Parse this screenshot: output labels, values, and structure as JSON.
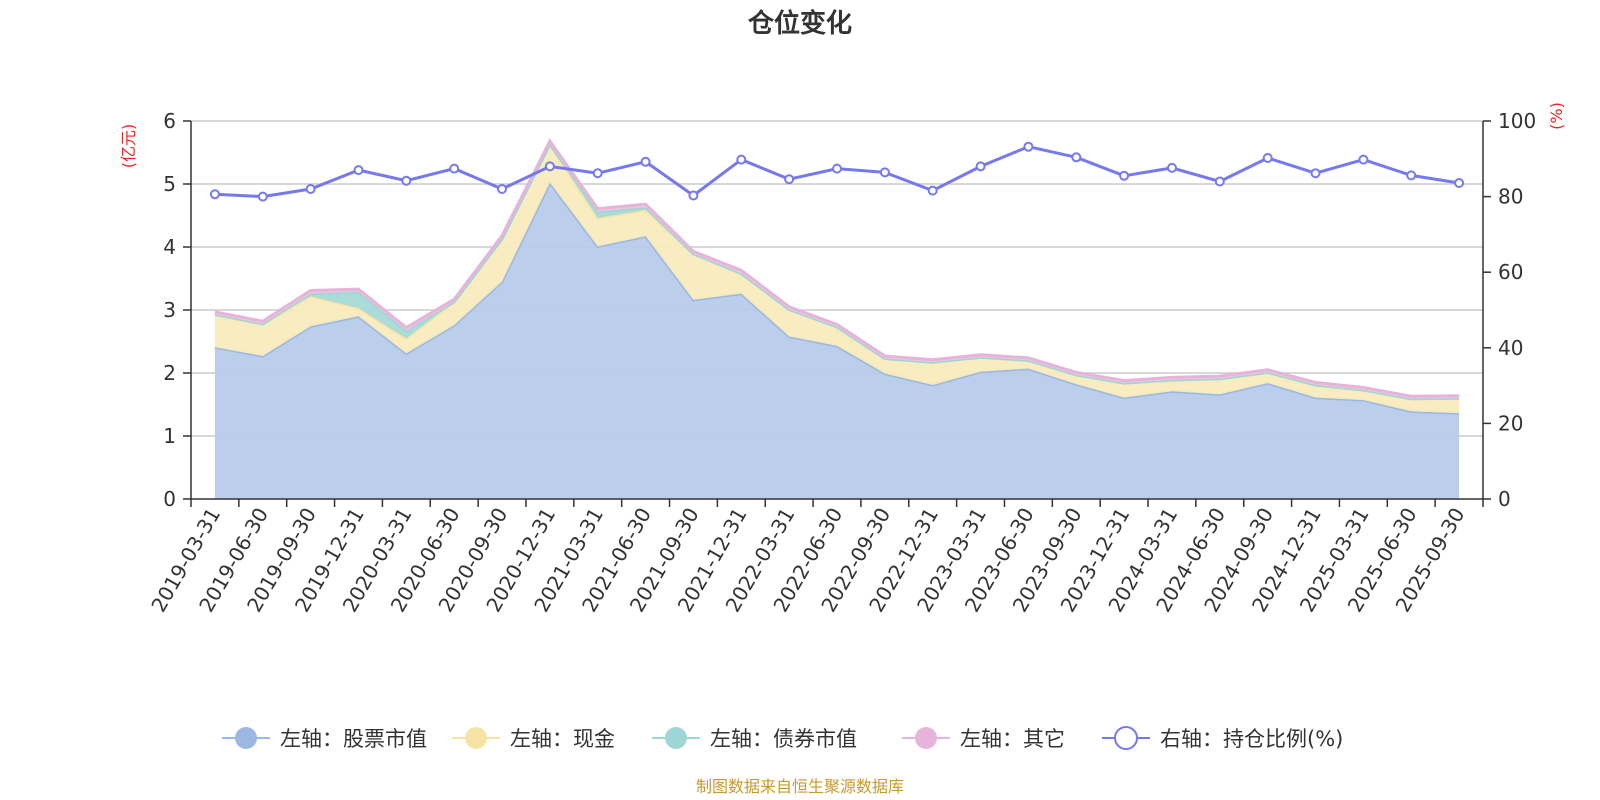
{
  "chart_data": {
    "type": "area",
    "title": "仓位变化",
    "left_axis_label": "(亿元)",
    "right_axis_label": "(%)",
    "categories": [
      "2019-03-31",
      "2019-06-30",
      "2019-09-30",
      "2019-12-31",
      "2020-03-31",
      "2020-06-30",
      "2020-09-30",
      "2020-12-31",
      "2021-03-31",
      "2021-06-30",
      "2021-09-30",
      "2021-12-31",
      "2022-03-31",
      "2022-06-30",
      "2022-09-30",
      "2022-12-31",
      "2023-03-31",
      "2023-06-30",
      "2023-09-30",
      "2023-12-31",
      "2024-03-31",
      "2024-06-30",
      "2024-09-30",
      "2024-12-31",
      "2025-03-31",
      "2025-06-30",
      "2025-09-30"
    ],
    "left_ylim": [
      0,
      6
    ],
    "left_ticks": [
      "0",
      "1",
      "2",
      "3",
      "4",
      "5",
      "6"
    ],
    "right_ylim": [
      0,
      100
    ],
    "right_ticks": [
      "0",
      "20",
      "40",
      "60",
      "80",
      "100"
    ],
    "stack_series": [
      {
        "name": "左轴：股票市值",
        "color": "#9bb8e2",
        "fill": "#b7cbea",
        "values": [
          2.41,
          2.27,
          2.74,
          2.9,
          2.31,
          2.76,
          3.45,
          5.02,
          4.01,
          4.17,
          3.16,
          3.26,
          2.58,
          2.43,
          1.99,
          1.81,
          2.02,
          2.07,
          1.82,
          1.61,
          1.71,
          1.66,
          1.84,
          1.61,
          1.57,
          1.39,
          1.36
        ]
      },
      {
        "name": "左轴：现金",
        "color": "#f7e4a5",
        "fill": "#f8ebbd",
        "values": [
          0.52,
          0.51,
          0.48,
          0.13,
          0.24,
          0.37,
          0.68,
          0.61,
          0.45,
          0.42,
          0.73,
          0.32,
          0.43,
          0.3,
          0.24,
          0.36,
          0.23,
          0.13,
          0.15,
          0.23,
          0.18,
          0.25,
          0.17,
          0.2,
          0.16,
          0.2,
          0.24
        ]
      },
      {
        "name": "左轴：债券市值",
        "color": "#9dd6d4",
        "fill": "#a5dad7",
        "values": [
          0,
          0,
          0.04,
          0.26,
          0.12,
          0,
          0,
          0,
          0.1,
          0.04,
          0,
          0,
          0,
          0,
          0,
          0,
          0,
          0,
          0,
          0,
          0,
          0,
          0,
          0,
          0,
          0,
          0
        ]
      },
      {
        "name": "左轴：其它",
        "color": "#e7b3da",
        "fill": "#eec6e2",
        "values": [
          0.04,
          0.04,
          0.05,
          0.04,
          0.05,
          0.04,
          0.05,
          0.05,
          0.05,
          0.05,
          0.04,
          0.05,
          0.04,
          0.04,
          0.04,
          0.04,
          0.04,
          0.04,
          0.04,
          0.04,
          0.04,
          0.04,
          0.04,
          0.04,
          0.04,
          0.04,
          0.04
        ]
      }
    ],
    "line_series": {
      "name": "右轴：持仓比例(%)",
      "color": "#7679ee",
      "values": [
        80.6,
        80.0,
        82.0,
        87.0,
        84.2,
        87.4,
        82.0,
        88.0,
        86.2,
        89.2,
        80.3,
        89.8,
        84.6,
        87.4,
        86.4,
        81.6,
        88.0,
        93.2,
        90.4,
        85.5,
        87.6,
        84.0,
        90.2,
        86.2,
        89.8,
        85.6,
        83.6
      ]
    },
    "legend": [
      {
        "label": "左轴：股票市值",
        "color": "#9bb8e2",
        "marker": "filled"
      },
      {
        "label": "左轴：现金",
        "color": "#f7e4a5",
        "marker": "filled"
      },
      {
        "label": "左轴：债券市值",
        "color": "#9dd6d4",
        "marker": "filled"
      },
      {
        "label": "左轴：其它",
        "color": "#e7b3da",
        "marker": "filled"
      },
      {
        "label": "右轴：持仓比例(%)",
        "color": "#7679ee",
        "marker": "hollow"
      }
    ]
  },
  "footer": {
    "source": "制图数据来自恒生聚源数据库"
  }
}
